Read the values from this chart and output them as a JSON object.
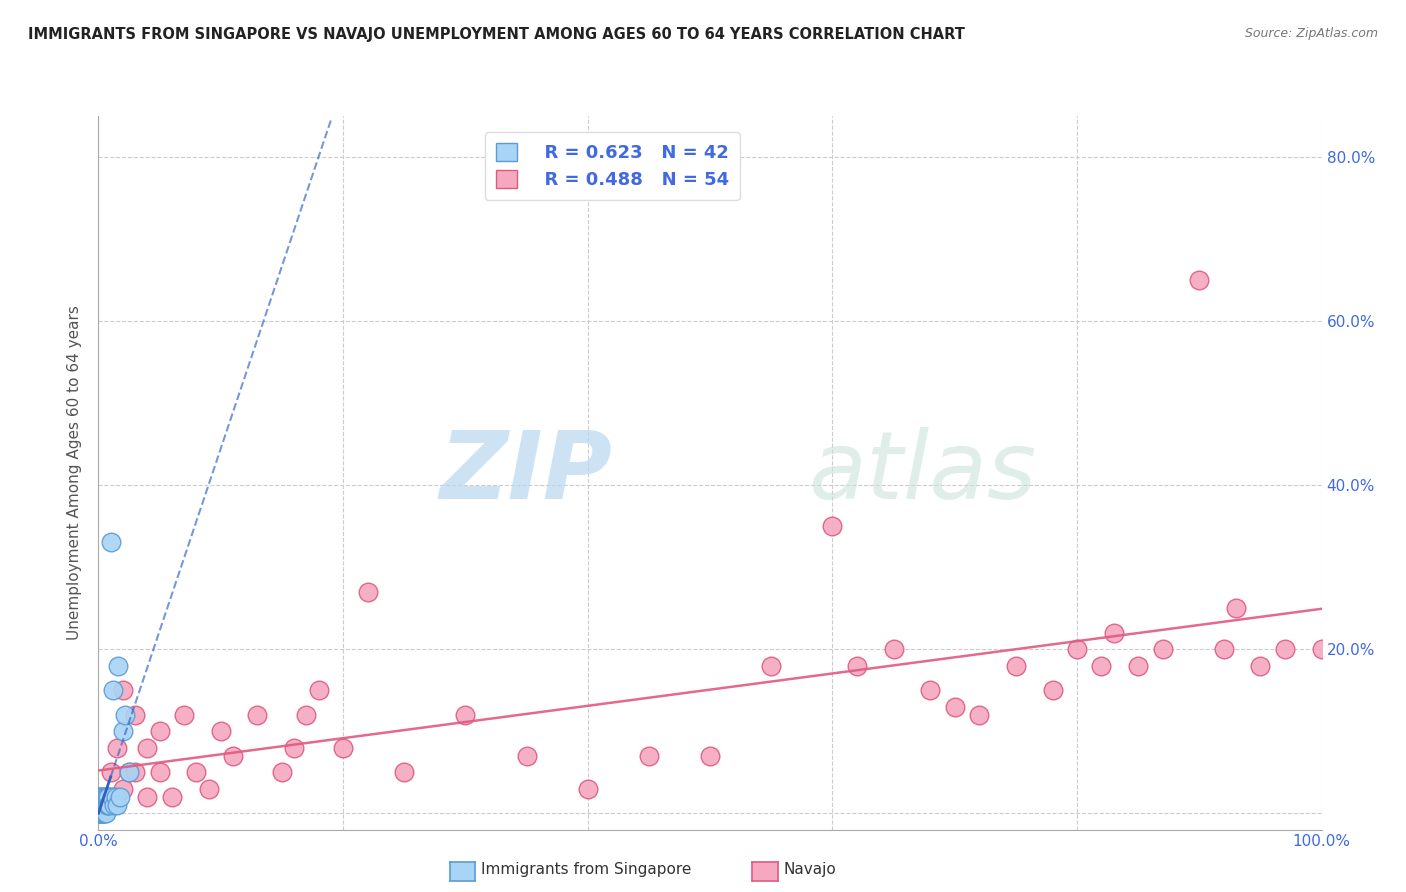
{
  "title": "IMMIGRANTS FROM SINGAPORE VS NAVAJO UNEMPLOYMENT AMONG AGES 60 TO 64 YEARS CORRELATION CHART",
  "source": "Source: ZipAtlas.com",
  "ylabel": "Unemployment Among Ages 60 to 64 years",
  "xlim": [
    0,
    1.0
  ],
  "ylim": [
    -0.02,
    0.85
  ],
  "xtick_positions": [
    0.0,
    0.2,
    0.4,
    0.6,
    0.8,
    1.0
  ],
  "xticklabels": [
    "0.0%",
    "",
    "",
    "",
    "",
    "100.0%"
  ],
  "ytick_positions": [
    0.0,
    0.2,
    0.4,
    0.6,
    0.8
  ],
  "ytick_right_labels": [
    "",
    "20.0%",
    "40.0%",
    "60.0%",
    "80.0%"
  ],
  "grid_color": "#cccccc",
  "bg_color": "#ffffff",
  "watermark_zip": "ZIP",
  "watermark_atlas": "atlas",
  "legend_R1": "R = 0.623",
  "legend_N1": "N = 42",
  "legend_R2": "R = 0.488",
  "legend_N2": "N = 54",
  "singapore_fill": "#a8d4f5",
  "singapore_edge": "#5b9bd5",
  "navajo_fill": "#f5a8c0",
  "navajo_edge": "#e05a80",
  "singapore_trend_color": "#3060c0",
  "navajo_trend_color": "#e05a80",
  "singapore_x": [
    0.0,
    0.0,
    0.0,
    0.001,
    0.001,
    0.001,
    0.001,
    0.002,
    0.002,
    0.002,
    0.002,
    0.002,
    0.003,
    0.003,
    0.003,
    0.003,
    0.004,
    0.004,
    0.004,
    0.004,
    0.005,
    0.005,
    0.005,
    0.006,
    0.006,
    0.006,
    0.007,
    0.007,
    0.008,
    0.008,
    0.009,
    0.01,
    0.011,
    0.012,
    0.013,
    0.014,
    0.015,
    0.016,
    0.018,
    0.02,
    0.022,
    0.025
  ],
  "singapore_y": [
    0.0,
    0.01,
    0.0,
    0.0,
    0.01,
    0.02,
    0.0,
    0.0,
    0.01,
    0.02,
    0.0,
    0.01,
    0.0,
    0.01,
    0.02,
    0.0,
    0.0,
    0.01,
    0.02,
    0.0,
    0.0,
    0.01,
    0.02,
    0.01,
    0.02,
    0.0,
    0.01,
    0.02,
    0.02,
    0.01,
    0.01,
    0.33,
    0.02,
    0.15,
    0.01,
    0.02,
    0.01,
    0.18,
    0.02,
    0.1,
    0.12,
    0.05
  ],
  "navajo_x": [
    0.0,
    0.0,
    0.0,
    0.01,
    0.01,
    0.015,
    0.02,
    0.02,
    0.025,
    0.03,
    0.03,
    0.04,
    0.04,
    0.05,
    0.05,
    0.06,
    0.07,
    0.08,
    0.09,
    0.1,
    0.11,
    0.13,
    0.15,
    0.16,
    0.17,
    0.18,
    0.2,
    0.22,
    0.25,
    0.3,
    0.35,
    0.4,
    0.45,
    0.5,
    0.55,
    0.6,
    0.62,
    0.65,
    0.68,
    0.7,
    0.72,
    0.75,
    0.78,
    0.8,
    0.82,
    0.83,
    0.85,
    0.87,
    0.9,
    0.92,
    0.93,
    0.95,
    0.97,
    1.0
  ],
  "navajo_y": [
    0.0,
    0.02,
    0.0,
    0.05,
    0.02,
    0.08,
    0.03,
    0.15,
    0.05,
    0.05,
    0.12,
    0.02,
    0.08,
    0.1,
    0.05,
    0.02,
    0.12,
    0.05,
    0.03,
    0.1,
    0.07,
    0.12,
    0.05,
    0.08,
    0.12,
    0.15,
    0.08,
    0.27,
    0.05,
    0.12,
    0.07,
    0.03,
    0.07,
    0.07,
    0.18,
    0.35,
    0.18,
    0.2,
    0.15,
    0.13,
    0.12,
    0.18,
    0.15,
    0.2,
    0.18,
    0.22,
    0.18,
    0.2,
    0.65,
    0.2,
    0.25,
    0.18,
    0.2,
    0.2
  ]
}
